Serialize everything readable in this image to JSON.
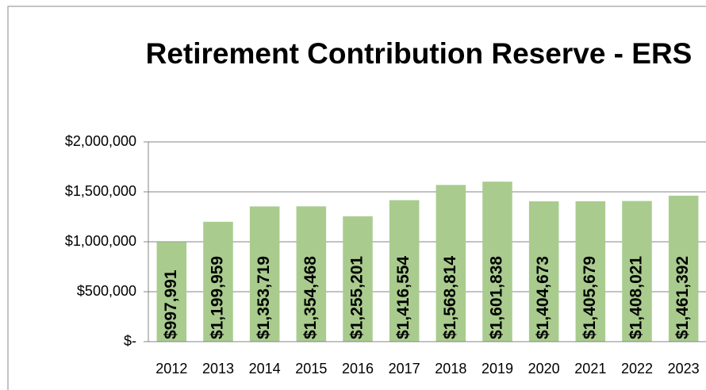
{
  "chart_data": {
    "type": "bar",
    "title": "Retirement Contribution Reserve - ERS",
    "categories": [
      "2012",
      "2013",
      "2014",
      "2015",
      "2016",
      "2017",
      "2018",
      "2019",
      "2020",
      "2021",
      "2022",
      "2023"
    ],
    "values": [
      997991,
      1199959,
      1353719,
      1354468,
      1255201,
      1416554,
      1568814,
      1601838,
      1404673,
      1405679,
      1408021,
      1461392
    ],
    "value_labels": [
      "$997,991",
      "$1,199,959",
      "$1,353,719",
      "$1,354,468",
      "$1,255,201",
      "$1,416,554",
      "$1,568,814",
      "$1,601,838",
      "$1,404,673",
      "$1,405,679",
      "$1,408,021",
      "$1,461,392"
    ],
    "color": "#a9cc8e",
    "ylim": [
      0,
      2000000
    ],
    "yticks": [
      {
        "value": 0,
        "label": "$-"
      },
      {
        "value": 500000,
        "label": "$500,000"
      },
      {
        "value": 1000000,
        "label": "$1,000,000"
      },
      {
        "value": 1500000,
        "label": "$1,500,000"
      },
      {
        "value": 2000000,
        "label": "$2,000,000"
      }
    ],
    "grid": true
  }
}
